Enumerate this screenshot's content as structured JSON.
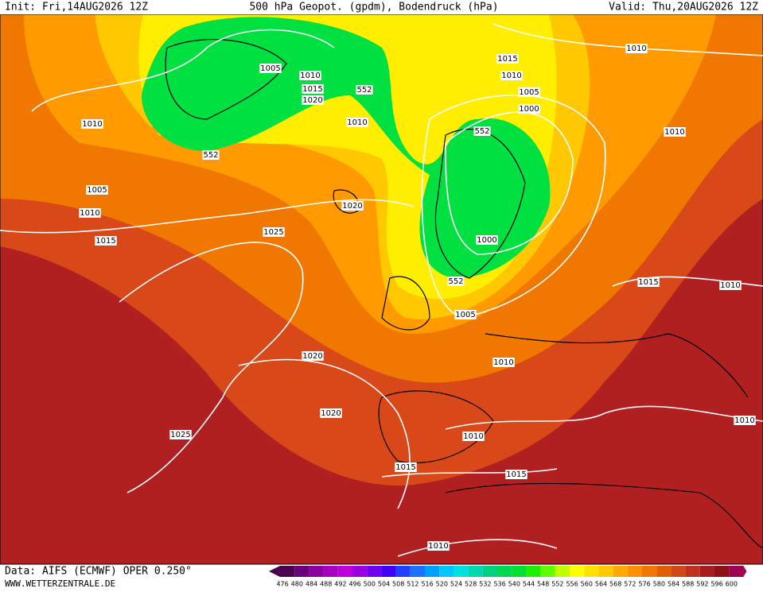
{
  "header": {
    "init": "Init: Fri,14AUG2026 12Z",
    "title": "500 hPa Geopot. (gpdm), Bodendruck (hPa)",
    "valid": "Valid: Thu,20AUG2026 12Z"
  },
  "footer": {
    "source": "Data: AIFS (ECMWF) OPER 0.250°",
    "website": "WWW.WETTERZENTRALE.DE"
  },
  "contour_labels": [
    "1005",
    "1010",
    "552",
    "1015",
    "1020",
    "1010",
    "1010",
    "552",
    "1005",
    "1010",
    "1015",
    "1020",
    "1025",
    "1015",
    "1010",
    "1010",
    "1005",
    "1000",
    "552",
    "1010",
    "1000",
    "552",
    "1015",
    "1010",
    "1005",
    "1020",
    "1010",
    "1020",
    "1025",
    "1010",
    "1010",
    "1015",
    "1015",
    "1010"
  ],
  "colorbar": {
    "levels": [
      476,
      480,
      484,
      488,
      492,
      496,
      500,
      504,
      508,
      512,
      516,
      520,
      524,
      528,
      532,
      536,
      540,
      544,
      548,
      552,
      556,
      560,
      564,
      568,
      572,
      576,
      580,
      584,
      588,
      592,
      596,
      600
    ],
    "colors": [
      "#4b0050",
      "#6a007a",
      "#8a00a0",
      "#a800c0",
      "#c000d8",
      "#9a00e0",
      "#7000f0",
      "#4000f8",
      "#2040ff",
      "#2070ff",
      "#00a0ff",
      "#00c8ff",
      "#00e0e0",
      "#00d8b0",
      "#00d080",
      "#00d850",
      "#00e030",
      "#20f000",
      "#60ff00",
      "#c0ff00",
      "#ffff00",
      "#ffe000",
      "#ffc800",
      "#ffaa00",
      "#ff9000",
      "#f07800",
      "#e06000",
      "#d04818",
      "#c03020",
      "#a81c20",
      "#901018",
      "#a00050"
    ]
  }
}
